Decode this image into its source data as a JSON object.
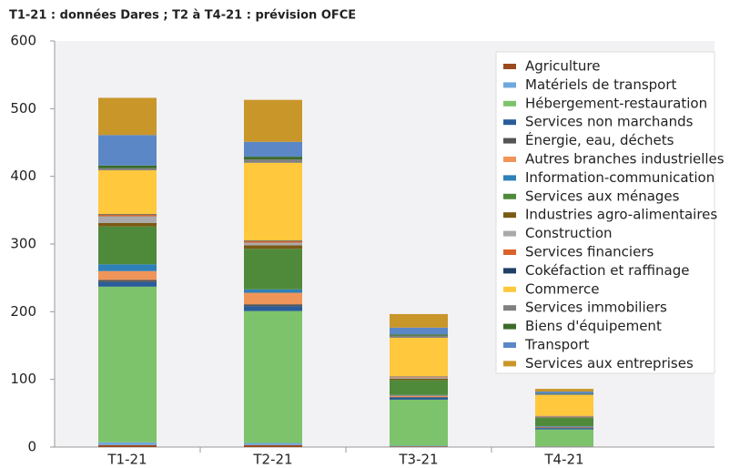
{
  "chart_data": {
    "type": "stacked_bar",
    "title": "T1-21 : données Dares ; T2 à T4-21 : prévision OFCE",
    "categories": [
      "T1-21",
      "T2-21",
      "T3-21",
      "T4-21"
    ],
    "ylim": [
      0,
      600
    ],
    "yticks": [
      0,
      100,
      200,
      300,
      400,
      500,
      600
    ],
    "grid": false,
    "legend": "upper right",
    "series": [
      {
        "name": "Agriculture",
        "color": "#9b4a1f",
        "values": [
          3,
          3,
          1,
          0.5
        ]
      },
      {
        "name": "Matériels de transport",
        "color": "#6fa8dc",
        "values": [
          4,
          3,
          1,
          0.5
        ]
      },
      {
        "name": "Hébergement-restauration",
        "color": "#7dc36b",
        "values": [
          230,
          195,
          68,
          25
        ]
      },
      {
        "name": "Services non marchands",
        "color": "#2a5c9a",
        "values": [
          7,
          7,
          3,
          2
        ]
      },
      {
        "name": "Énergie, eau, déchets",
        "color": "#555555",
        "values": [
          3,
          3,
          1,
          1
        ]
      },
      {
        "name": "Autres branches industrielles",
        "color": "#f0955a",
        "values": [
          13,
          17,
          2,
          1
        ]
      },
      {
        "name": "Information-communication",
        "color": "#2e80b8",
        "values": [
          10,
          5,
          1,
          1
        ]
      },
      {
        "name": "Services aux ménages",
        "color": "#4f8a3b",
        "values": [
          56,
          60,
          22,
          12
        ]
      },
      {
        "name": "Industries agro-alimentaires",
        "color": "#7a5a14",
        "values": [
          5,
          5,
          2,
          1
        ]
      },
      {
        "name": "Construction",
        "color": "#aaaaaa",
        "values": [
          10,
          4,
          2,
          1
        ]
      },
      {
        "name": "Services financiers",
        "color": "#d9622b",
        "values": [
          2,
          2,
          1,
          0.5
        ]
      },
      {
        "name": "Cokéfaction et raffinage",
        "color": "#1f3f66",
        "values": [
          1,
          1,
          0.5,
          0.5
        ]
      },
      {
        "name": "Commerce",
        "color": "#ffc83d",
        "values": [
          65,
          115,
          57,
          31
        ]
      },
      {
        "name": "Services immobiliers",
        "color": "#808080",
        "values": [
          3,
          5,
          3,
          1
        ]
      },
      {
        "name": "Biens d'équipement",
        "color": "#3b6b2a",
        "values": [
          4,
          4,
          2,
          1
        ]
      },
      {
        "name": "Transport",
        "color": "#5b87c7",
        "values": [
          45,
          22,
          10,
          3
        ]
      },
      {
        "name": "Services aux entreprises",
        "color": "#c9962a",
        "values": [
          55,
          62,
          20,
          4
        ]
      }
    ]
  }
}
